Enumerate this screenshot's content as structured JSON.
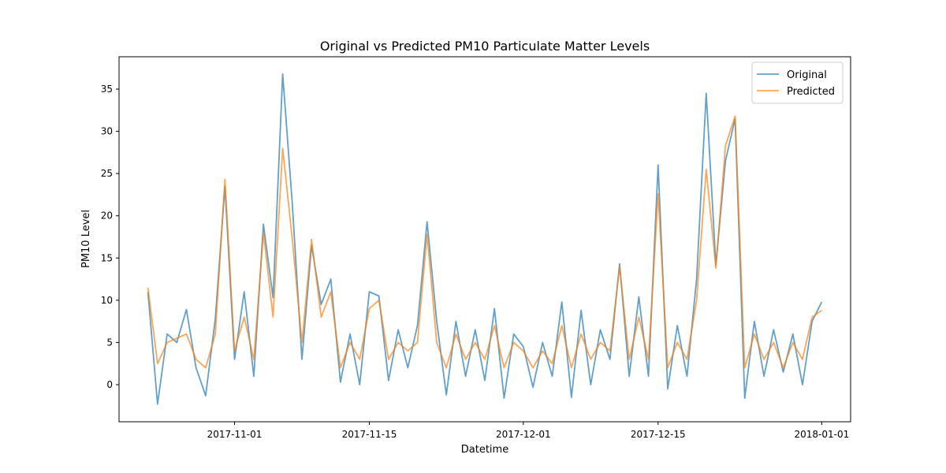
{
  "chart_data": {
    "type": "line",
    "title": "Original vs Predicted PM10 Particulate Matter Levels",
    "x_label": "Datetime",
    "y_label": "PM10 Level",
    "x": [
      "2017-10-23",
      "2017-10-24",
      "2017-10-25",
      "2017-10-26",
      "2017-10-27",
      "2017-10-28",
      "2017-10-29",
      "2017-10-30",
      "2017-10-31",
      "2017-11-01",
      "2017-11-02",
      "2017-11-03",
      "2017-11-04",
      "2017-11-05",
      "2017-11-06",
      "2017-11-07",
      "2017-11-08",
      "2017-11-09",
      "2017-11-10",
      "2017-11-11",
      "2017-11-12",
      "2017-11-13",
      "2017-11-14",
      "2017-11-15",
      "2017-11-16",
      "2017-11-17",
      "2017-11-18",
      "2017-11-19",
      "2017-11-20",
      "2017-11-21",
      "2017-11-22",
      "2017-11-23",
      "2017-11-24",
      "2017-11-25",
      "2017-11-26",
      "2017-11-27",
      "2017-11-28",
      "2017-11-29",
      "2017-11-30",
      "2017-12-01",
      "2017-12-02",
      "2017-12-03",
      "2017-12-04",
      "2017-12-05",
      "2017-12-06",
      "2017-12-07",
      "2017-12-08",
      "2017-12-09",
      "2017-12-10",
      "2017-12-11",
      "2017-12-12",
      "2017-12-13",
      "2017-12-14",
      "2017-12-15",
      "2017-12-16",
      "2017-12-17",
      "2017-12-18",
      "2017-12-19",
      "2017-12-20",
      "2017-12-21",
      "2017-12-22",
      "2017-12-23",
      "2017-12-24",
      "2017-12-25",
      "2017-12-26",
      "2017-12-27",
      "2017-12-28",
      "2017-12-29",
      "2017-12-30",
      "2017-12-31",
      "2018-01-01"
    ],
    "series": [
      {
        "name": "Original",
        "color": "#1f77b4",
        "values": [
          11,
          -2.3,
          6,
          5,
          8.9,
          2,
          -1.3,
          7.8,
          23.5,
          3,
          11,
          1,
          19,
          10.3,
          36.8,
          21.4,
          3,
          16.5,
          9.5,
          12.5,
          0.3,
          6,
          0,
          11,
          10.5,
          0.5,
          6.5,
          2,
          7,
          19.3,
          7.5,
          -1.2,
          7.5,
          1,
          6.5,
          0.5,
          9,
          -1.6,
          6,
          4.5,
          -0.3,
          5,
          1,
          9.8,
          -1.5,
          8.8,
          0,
          6.5,
          3,
          14.3,
          1,
          10.4,
          1,
          26,
          -0.5,
          7,
          1,
          12.5,
          34.5,
          14.2,
          26.5,
          31.5,
          -1.6,
          7.5,
          1,
          6.5,
          1.5,
          6,
          0,
          7.5,
          9.8
        ]
      },
      {
        "name": "Predicted",
        "color": "#ff7f0e",
        "values": [
          11.5,
          2.5,
          5,
          5.5,
          6,
          3,
          2,
          6,
          24.3,
          4,
          8,
          3,
          18,
          8,
          28,
          17.2,
          5,
          17.2,
          8,
          11,
          2,
          5,
          3,
          9,
          10,
          3,
          5,
          4,
          5,
          17.8,
          5,
          2,
          6,
          3,
          5,
          3,
          7,
          2,
          5,
          4,
          2,
          4,
          2.5,
          7,
          2,
          6,
          3,
          5,
          4,
          14,
          3,
          8,
          3,
          22.6,
          2,
          5,
          3,
          10,
          25.5,
          13.8,
          28.3,
          31.8,
          2,
          6,
          3,
          5,
          2,
          5,
          3,
          8,
          8.8
        ]
      }
    ],
    "xlim": [
      "2017-10-20",
      "2018-01-04"
    ],
    "xticks": [
      "2017-11-01",
      "2017-11-15",
      "2017-12-01",
      "2017-12-15",
      "2018-01-01"
    ],
    "ylim": [
      -4.39,
      38.83
    ],
    "yticks": [
      0,
      5,
      10,
      15,
      20,
      25,
      30,
      35
    ],
    "legend": "upper right"
  }
}
